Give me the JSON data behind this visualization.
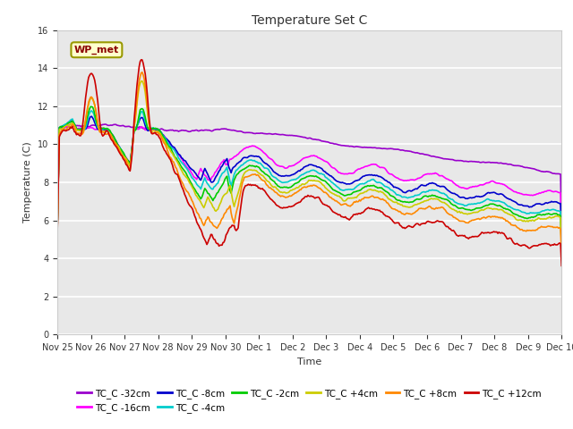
{
  "title": "Temperature Set C",
  "xlabel": "Time",
  "ylabel": "Temperature (C)",
  "ylim": [
    0,
    16
  ],
  "yticks": [
    0,
    2,
    4,
    6,
    8,
    10,
    12,
    14,
    16
  ],
  "fig_bg": "#ffffff",
  "plot_bg": "#e8e8e8",
  "annotation_text": "WP_met",
  "annotation_color": "#8b0000",
  "annotation_bg": "#ffffcc",
  "annotation_edge": "#999900",
  "series": [
    {
      "label": "TC_C -32cm",
      "color": "#9900cc"
    },
    {
      "label": "TC_C -16cm",
      "color": "#ff00ff"
    },
    {
      "label": "TC_C -8cm",
      "color": "#0000cc"
    },
    {
      "label": "TC_C -4cm",
      "color": "#00cccc"
    },
    {
      "label": "TC_C -2cm",
      "color": "#00cc00"
    },
    {
      "label": "TC_C +4cm",
      "color": "#cccc00"
    },
    {
      "label": "TC_C +8cm",
      "color": "#ff8800"
    },
    {
      "label": "TC_C +12cm",
      "color": "#cc0000"
    }
  ],
  "xtick_labels": [
    "Nov 25",
    "Nov 26",
    "Nov 27",
    "Nov 28",
    "Nov 29",
    "Nov 30",
    "Dec 1",
    "Dec 2",
    "Dec 3",
    "Dec 4",
    "Dec 5",
    "Dec 6",
    "Dec 7",
    "Dec 8",
    "Dec 9",
    "Dec 10"
  ],
  "n_points": 500
}
